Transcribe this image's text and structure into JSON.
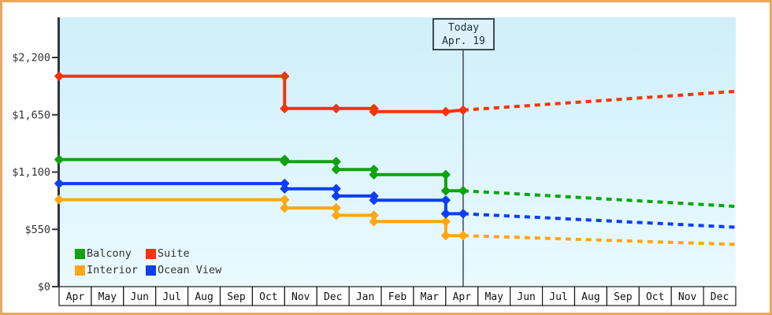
{
  "chart_data": {
    "type": "line",
    "description": "Cabin price history with dotted future projection",
    "currency_prefix": "$",
    "y_axis": {
      "tick_values": [
        0,
        550,
        1100,
        1650,
        2200
      ],
      "tick_labels": [
        "$0",
        "$550",
        "$1,100",
        "$1,650",
        "$2,200"
      ],
      "ylim": [
        0,
        2585
      ],
      "grid": false
    },
    "x_axis": {
      "month_labels": [
        "Apr",
        "May",
        "Jun",
        "Jul",
        "Aug",
        "Sep",
        "Oct",
        "Nov",
        "Dec",
        "Jan",
        "Feb",
        "Mar",
        "Apr",
        "May",
        "Jun",
        "Jul",
        "Aug",
        "Sep",
        "Oct",
        "Nov",
        "Dec"
      ]
    },
    "today": {
      "line1": "Today",
      "line2": "Apr. 19",
      "month_index": 12.54
    },
    "legend": {
      "position": "bottom-left-inside",
      "entries": [
        "Balcony",
        "Suite",
        "Interior",
        "Ocean View"
      ]
    },
    "series": [
      {
        "name": "Balcony",
        "color": "#0fa30f",
        "history": [
          [
            0,
            1220
          ],
          [
            7,
            1220
          ],
          [
            7,
            1200
          ],
          [
            8.6,
            1200
          ],
          [
            8.6,
            1125
          ],
          [
            9.77,
            1125
          ],
          [
            9.77,
            1075
          ],
          [
            12,
            1075
          ],
          [
            12,
            920
          ],
          [
            12.54,
            920
          ]
        ],
        "projection": [
          [
            12.54,
            920
          ],
          [
            21,
            770
          ]
        ]
      },
      {
        "name": "Suite",
        "color": "#f73408",
        "history": [
          [
            0,
            2020
          ],
          [
            7,
            2020
          ],
          [
            7,
            1710
          ],
          [
            8.6,
            1710
          ],
          [
            9.77,
            1710
          ],
          [
            9.77,
            1680
          ],
          [
            12,
            1680
          ],
          [
            12.54,
            1695
          ]
        ],
        "projection": [
          [
            12.54,
            1695
          ],
          [
            21,
            1875
          ]
        ]
      },
      {
        "name": "Interior",
        "color": "#ffa714",
        "history": [
          [
            0,
            835
          ],
          [
            7,
            835
          ],
          [
            7,
            755
          ],
          [
            8.6,
            755
          ],
          [
            8.6,
            685
          ],
          [
            9.77,
            685
          ],
          [
            9.77,
            625
          ],
          [
            12,
            625
          ],
          [
            12,
            490
          ],
          [
            12.54,
            490
          ]
        ],
        "projection": [
          [
            12.54,
            490
          ],
          [
            21,
            405
          ]
        ]
      },
      {
        "name": "Ocean View",
        "color": "#0d3ff0",
        "history": [
          [
            0,
            990
          ],
          [
            7,
            990
          ],
          [
            7,
            940
          ],
          [
            8.6,
            940
          ],
          [
            8.6,
            870
          ],
          [
            9.77,
            870
          ],
          [
            9.77,
            830
          ],
          [
            12,
            830
          ],
          [
            12,
            700
          ],
          [
            12.54,
            700
          ]
        ],
        "projection": [
          [
            12.54,
            700
          ],
          [
            21,
            570
          ]
        ]
      }
    ]
  },
  "colors": {
    "frame_border": "#eaa75e",
    "plot_bg_top": "#cfeffa",
    "plot_bg_bottom": "#eafaff",
    "axis": "#2f3640",
    "tick_text": "#333333",
    "month_text": "#111111",
    "month_cell_bg": "#ffffff",
    "month_cell_border": "#1a1a1a",
    "today_line": "#3d4a55"
  }
}
